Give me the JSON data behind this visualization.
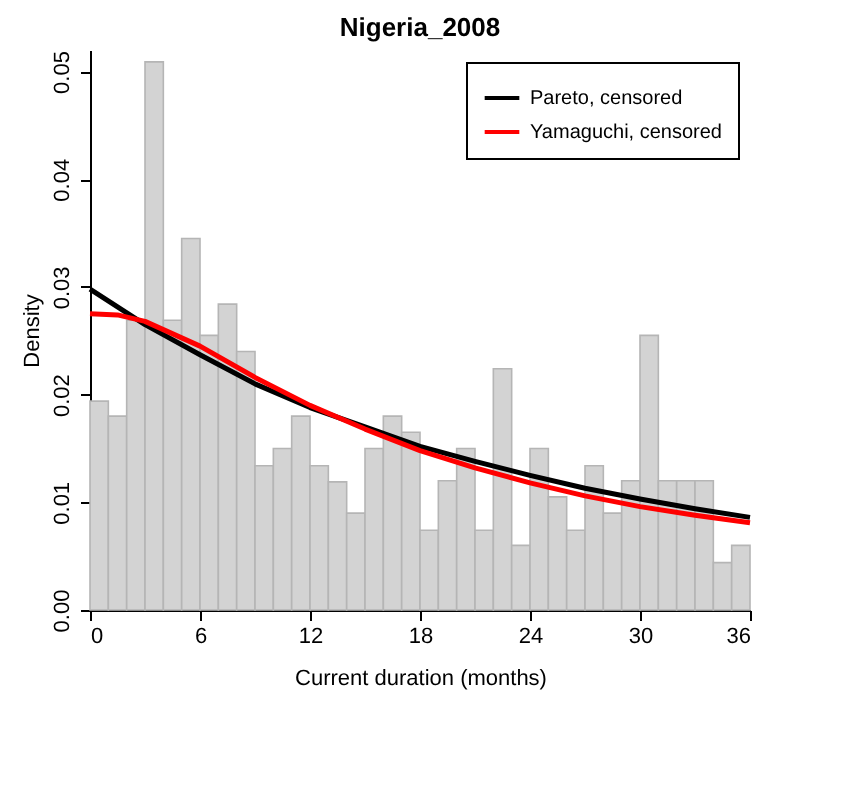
{
  "chart_data": {
    "type": "histogram",
    "title": "Nigeria_2008",
    "xlabel": "Current duration (months)",
    "ylabel": "Density",
    "bins": [
      0,
      1,
      2,
      3,
      4,
      5,
      6,
      7,
      8,
      9,
      10,
      11,
      12,
      13,
      14,
      15,
      16,
      17,
      18,
      19,
      20,
      21,
      22,
      23,
      24,
      25,
      26,
      27,
      28,
      29,
      30,
      31,
      32,
      33,
      34,
      35,
      36
    ],
    "values": [
      0.0194,
      0.018,
      0.0269,
      0.0509,
      0.0269,
      0.0345,
      0.0255,
      0.0284,
      0.024,
      0.0134,
      0.015,
      0.018,
      0.0134,
      0.0119,
      0.009,
      0.015,
      0.018,
      0.0165,
      0.0074,
      0.012,
      0.015,
      0.0074,
      0.0224,
      0.006,
      0.015,
      0.0105,
      0.0074,
      0.0134,
      0.009,
      0.012,
      0.0255,
      0.012,
      0.012,
      0.012,
      0.0044,
      0.006
    ],
    "color": "#d3d3d3",
    "series": [
      {
        "name": "Pareto, censored",
        "type": "line",
        "color": "#000000",
        "x": [
          0,
          3,
          6,
          9,
          12,
          15,
          18,
          21,
          24,
          27,
          30,
          33,
          36
        ],
        "values": [
          0.0298,
          0.0265,
          0.0237,
          0.021,
          0.0188,
          0.017,
          0.0152,
          0.0138,
          0.0125,
          0.0113,
          0.0103,
          0.0094,
          0.0086
        ]
      },
      {
        "name": "Yamaguchi, censored",
        "type": "line",
        "color": "#ff0000",
        "x": [
          0,
          1.5,
          3,
          6,
          9,
          12,
          15,
          18,
          21,
          24,
          27,
          30,
          33,
          36
        ],
        "values": [
          0.0275,
          0.0274,
          0.0268,
          0.0245,
          0.0216,
          0.019,
          0.0168,
          0.0148,
          0.0132,
          0.0118,
          0.0106,
          0.0096,
          0.0088,
          0.0081
        ]
      }
    ],
    "xlim": [
      0,
      36
    ],
    "ylim": [
      0,
      0.052
    ],
    "xticks": [
      0,
      6,
      12,
      18,
      24,
      30,
      36
    ],
    "yticks": [
      {
        "value": 0,
        "label": "0.00"
      },
      {
        "value": 0.01,
        "label": "0.01"
      },
      {
        "value": 0.02,
        "label": "0.02"
      },
      {
        "value": 0.03,
        "label": "0.03"
      },
      {
        "value": 0.04,
        "label": "0.04"
      },
      {
        "value": 0.05,
        "label": "0.05"
      }
    ],
    "legend": "top right"
  }
}
